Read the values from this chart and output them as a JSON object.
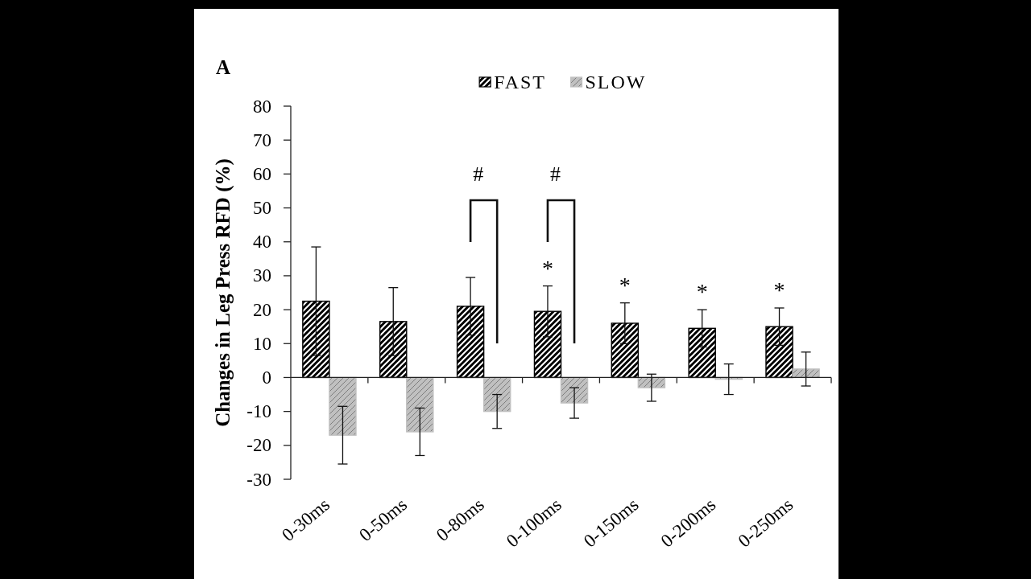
{
  "chart_data": {
    "type": "bar",
    "ylabel": "Changes in Leg Press RFD (%)",
    "categories": [
      "0-30ms",
      "0-50ms",
      "0-80ms",
      "0-100ms",
      "0-150ms",
      "0-200ms",
      "0-250ms"
    ],
    "series": [
      {
        "name": "FAST",
        "color": "#000000",
        "values": [
          22.5,
          16.5,
          21,
          19.5,
          16,
          14.5,
          15
        ],
        "errors": [
          16,
          10,
          8.5,
          7.5,
          6,
          5.5,
          5.5
        ]
      },
      {
        "name": "SLOW",
        "color": "#c0c0c0",
        "values": [
          -17,
          -16,
          -10,
          -7.5,
          -3,
          -0.5,
          2.5
        ],
        "errors": [
          8.5,
          7,
          5,
          4.5,
          4,
          4.5,
          5
        ]
      }
    ],
    "ylim": [
      -30,
      80
    ],
    "yticks": [
      -30,
      -20,
      -10,
      0,
      10,
      20,
      30,
      40,
      50,
      60,
      70,
      80
    ],
    "legend": "top",
    "annotations": [
      "A",
      "#",
      "#",
      {
        "text": "*",
        "x": "0-100ms",
        "y": 19.5
      },
      {
        "text": "*",
        "x": "0-150ms",
        "y": 16
      },
      {
        "text": "*",
        "x": "0-200ms",
        "y": 14.5
      },
      {
        "text": "*",
        "x": "0-250ms",
        "y": 15
      }
    ]
  }
}
